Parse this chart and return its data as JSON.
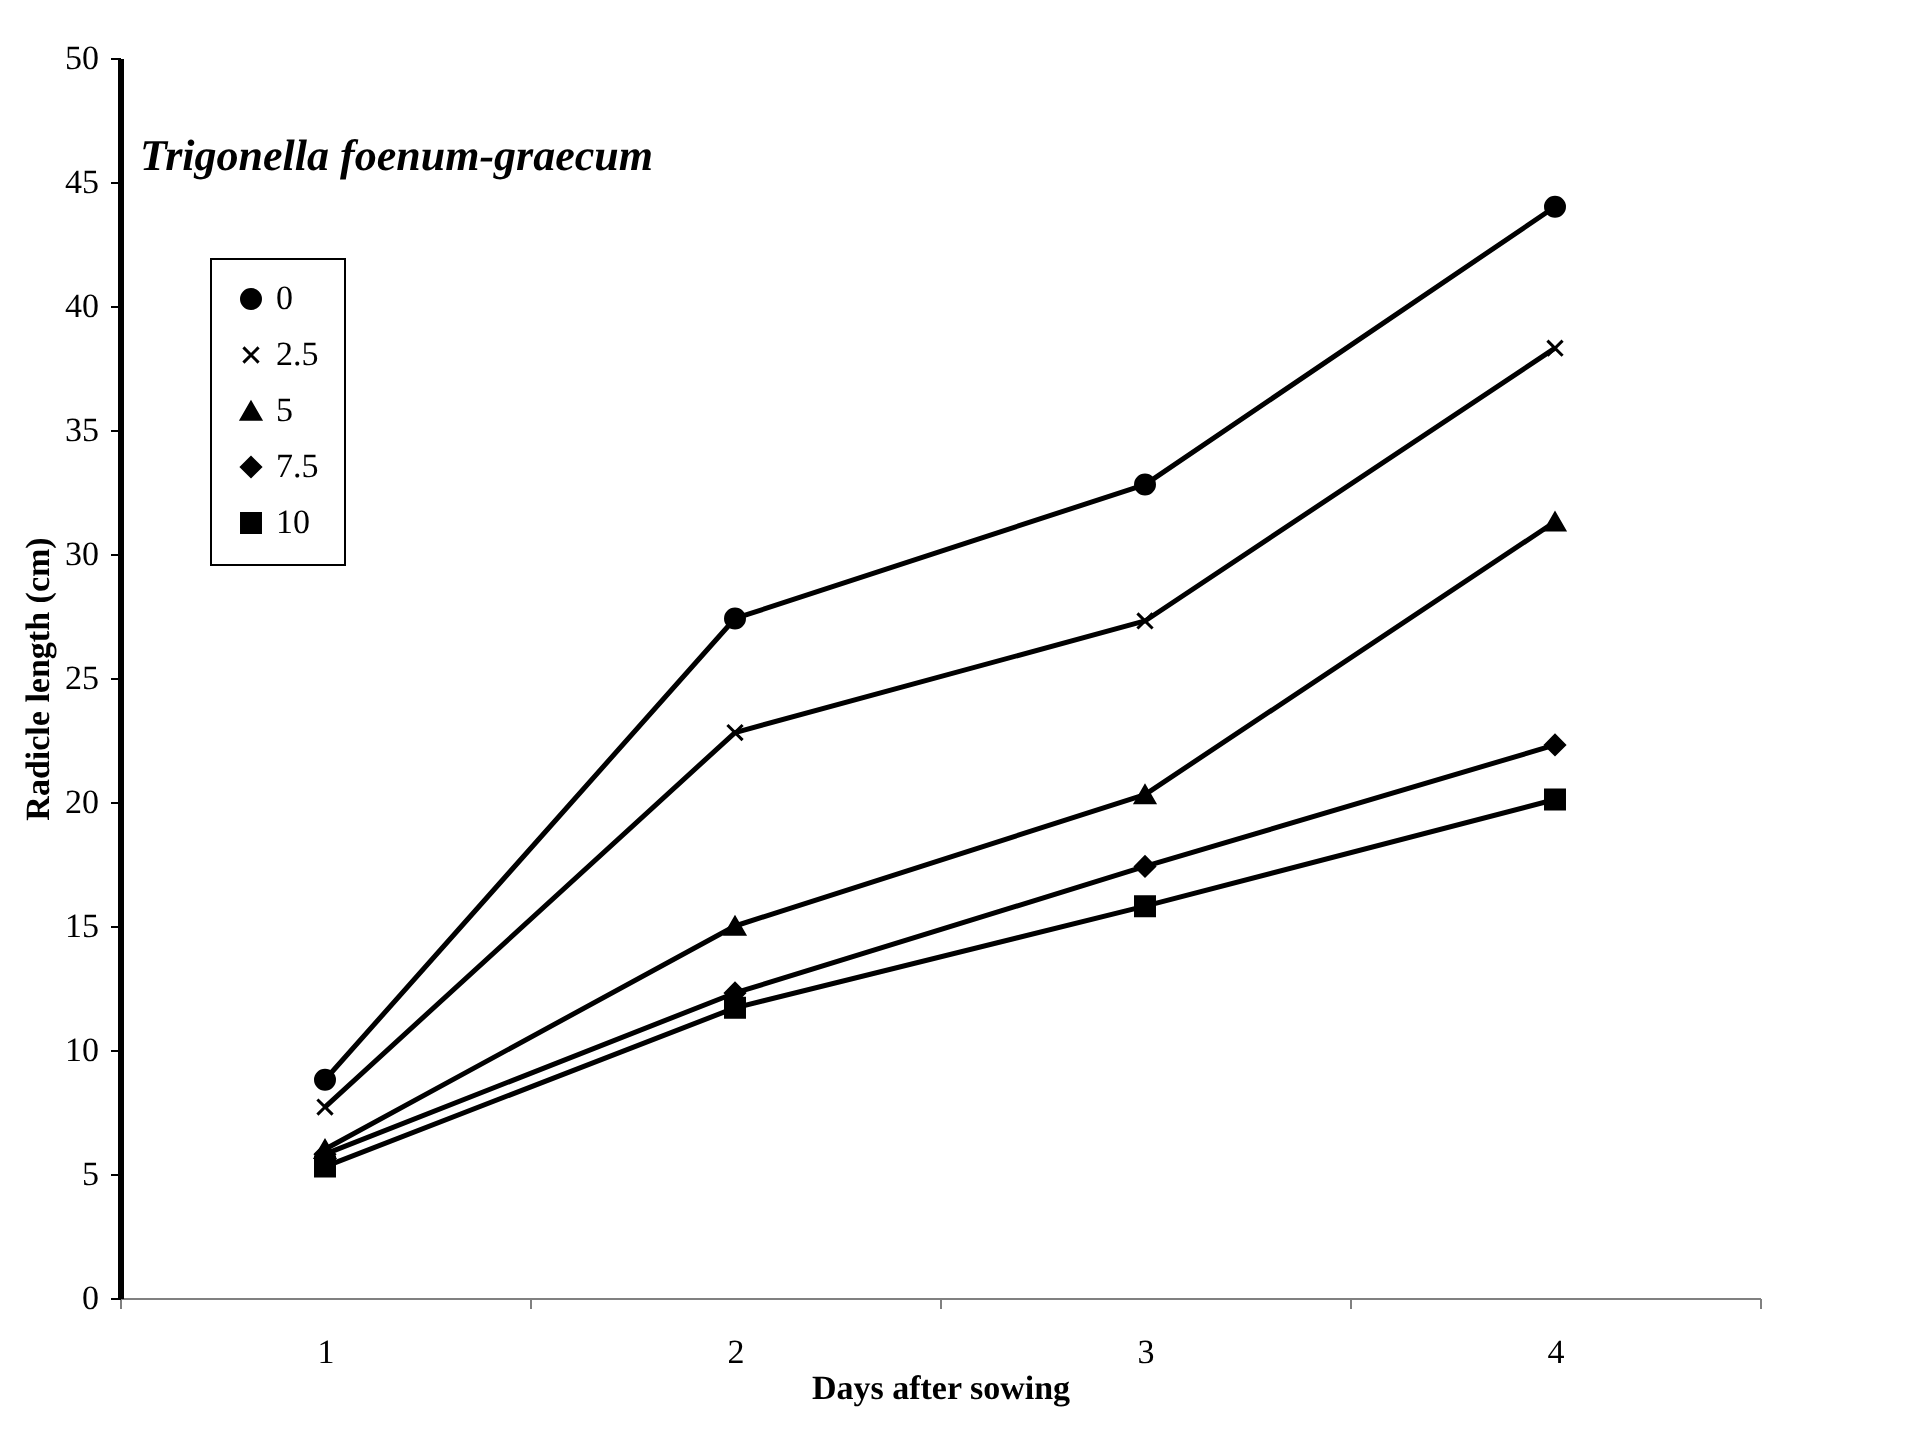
{
  "chart_data": {
    "type": "line",
    "title": "Trigonella foenum-graecum",
    "xlabel": "Days after sowing",
    "ylabel": "Radicle length (cm)",
    "categories": [
      "1",
      "2",
      "3",
      "4"
    ],
    "series": [
      {
        "name": "0",
        "color": "#000000",
        "marker": "circle",
        "values": [
          8.8,
          27.4,
          32.8,
          44.0
        ]
      },
      {
        "name": "2.5",
        "color": "#000000",
        "marker": "cross",
        "values": [
          7.7,
          22.8,
          27.3,
          38.3
        ]
      },
      {
        "name": "5",
        "color": "#000000",
        "marker": "triangle",
        "values": [
          6.0,
          15.0,
          20.3,
          31.3
        ]
      },
      {
        "name": "7.5",
        "color": "#000000",
        "marker": "diamond",
        "values": [
          5.8,
          12.3,
          17.4,
          22.3
        ]
      },
      {
        "name": "10",
        "color": "#000000",
        "marker": "square",
        "values": [
          5.3,
          11.7,
          15.8,
          20.1
        ]
      }
    ],
    "ylim": [
      0,
      50
    ],
    "yticks": [
      0,
      5,
      10,
      15,
      20,
      25,
      30,
      35,
      40,
      45,
      50
    ],
    "grid": false,
    "legend": "top left",
    "line_style": "solid"
  }
}
